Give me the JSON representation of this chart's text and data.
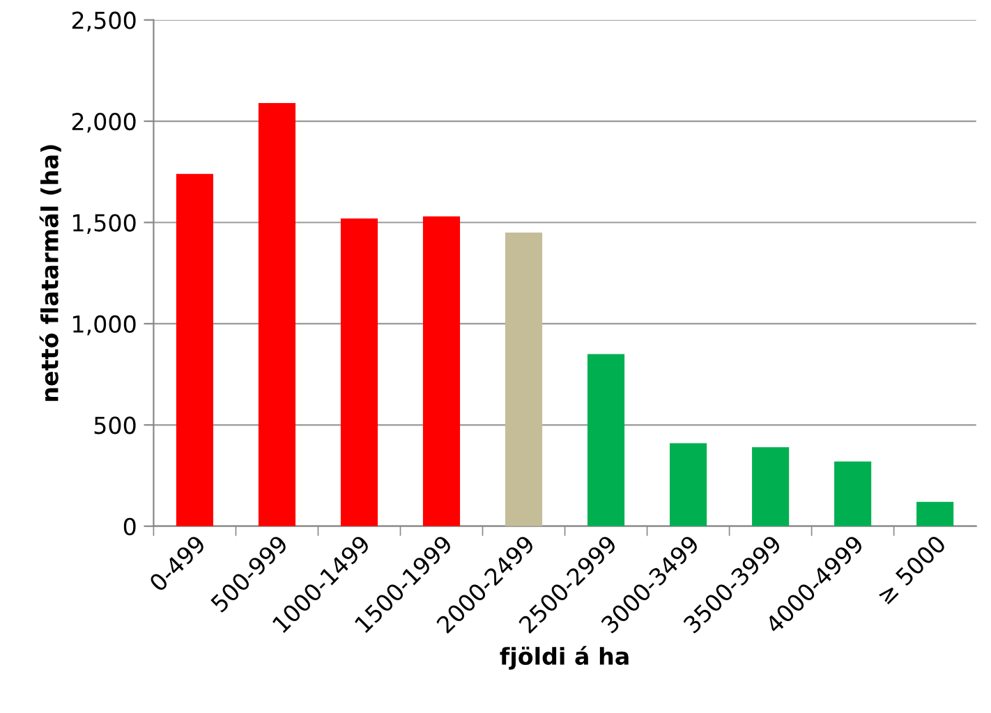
{
  "chart_data": {
    "type": "bar",
    "xlabel": "fjöldi á ha",
    "ylabel": "nettó flatarmál (ha)",
    "categories": [
      "0-499",
      "500-999",
      "1000-1499",
      "1500-1999",
      "2000-2499",
      "2500-2999",
      "3000-3499",
      "3500-3999",
      "4000-4999",
      "≥ 5000"
    ],
    "values": [
      1740,
      2090,
      1520,
      1530,
      1450,
      850,
      410,
      390,
      320,
      120
    ],
    "colors": [
      "#ff0000",
      "#ff0000",
      "#ff0000",
      "#ff0000",
      "#c4bd97",
      "#00b050",
      "#00b050",
      "#00b050",
      "#00b050",
      "#00b050"
    ],
    "ylim": [
      0,
      2500
    ],
    "yticks": [
      0,
      500,
      {
        "value": 1000,
        "label": "1,000"
      },
      {
        "value": 1500,
        "label": "1,500"
      },
      {
        "value": 2000,
        "label": "2,000"
      },
      {
        "value": 2500,
        "label": "2,500"
      }
    ],
    "grid": "y",
    "legend": false
  }
}
